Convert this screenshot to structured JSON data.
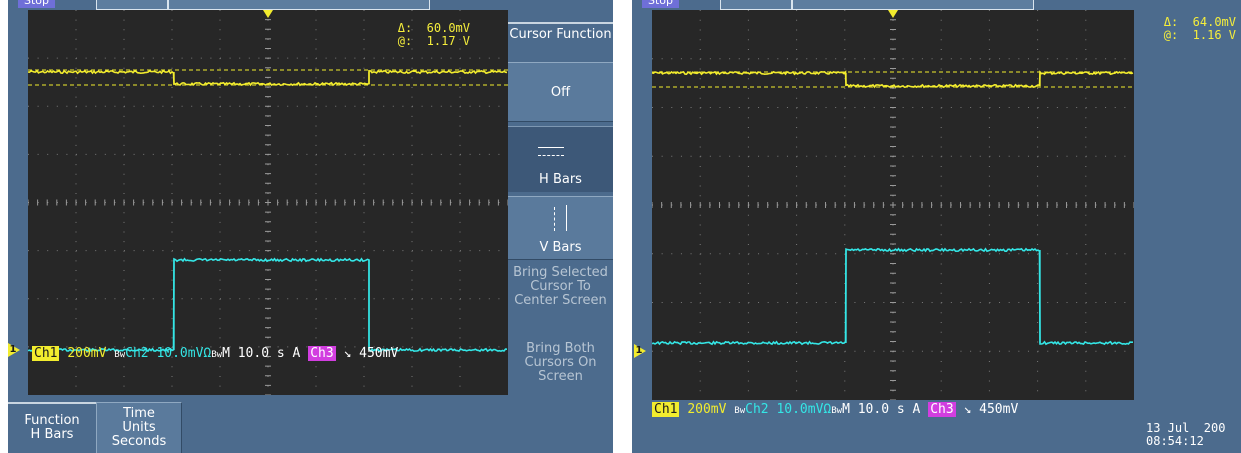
{
  "left_scope": {
    "run_state": "Stop",
    "readout": {
      "delta_label": "Δ:",
      "delta_value": "60.0mV",
      "at_label": "@:",
      "at_value": "1.17 V"
    },
    "menu": {
      "cursor_function": "Cursor Function",
      "off": "Off",
      "h_bars": "H Bars",
      "v_bars": "V Bars",
      "bring_selected": "Bring Selected Cursor To Center Screen",
      "bring_both": "Bring Both Cursors On Screen"
    },
    "bottom": {
      "function_label": "Function",
      "function_value": "H Bars",
      "time_units_label": "Time Units",
      "time_units_value": "Seconds"
    },
    "status": {
      "ch1": "Ch1",
      "ch1_scale": "200mV",
      "ch2_prefix": "Bw",
      "ch2": "Ch2",
      "ch2_scale": "10.0mVΩ",
      "ch2_suffix": "Bw",
      "timebase": "M 10.0 s",
      "trig": "A",
      "ch3": "Ch3",
      "slope": "↘",
      "level": "450mV"
    },
    "marker": "1"
  },
  "right_scope": {
    "run_state": "Stop",
    "readout": {
      "delta_label": "Δ:",
      "delta_value": "64.0mV",
      "at_label": "@:",
      "at_value": "1.16 V"
    },
    "status": {
      "ch1": "Ch1",
      "ch1_scale": "200mV",
      "ch2_prefix": "Bw",
      "ch2": "Ch2",
      "ch2_scale": "10.0mVΩ",
      "ch2_suffix": "Bw",
      "timebase": "M 10.0 s",
      "trig": "A",
      "ch3": "Ch3",
      "slope": "↘",
      "level": "450mV"
    },
    "marker": "1",
    "date": "13 Jul  200",
    "time": "08:54:12"
  },
  "colors": {
    "ch1": "#f2ec2e",
    "ch2": "#34e6e6",
    "ch3": "#d23ee0",
    "grid_bg": "#272727",
    "bezel": "#4c6b8d"
  }
}
